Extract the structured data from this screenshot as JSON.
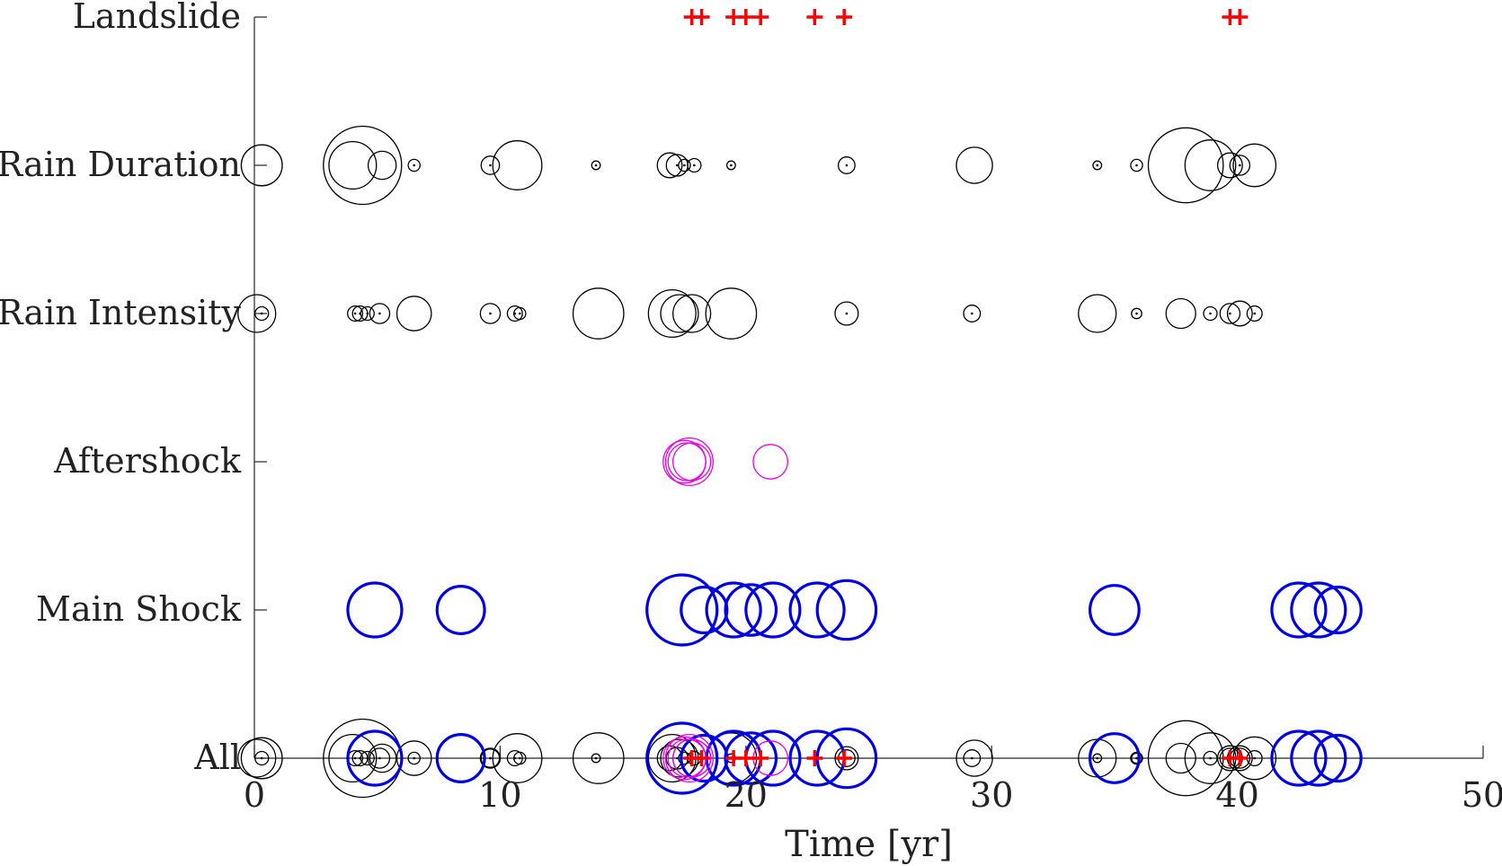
{
  "chart_data": {
    "type": "scatter",
    "title": "",
    "xlabel": "Time [yr]",
    "ylabel": "",
    "xlim": [
      0,
      50
    ],
    "xticks": [
      0,
      10,
      20,
      30,
      40,
      50
    ],
    "categories": [
      "All",
      "Main Shock",
      "Aftershock",
      "Rain Intensity",
      "Rain Duration",
      "Landslide"
    ],
    "grid": false,
    "legend": "none",
    "series": [
      {
        "row": "Main Shock",
        "marker": "circle-thick",
        "color": "#0000e6",
        "points": [
          {
            "x": 4.9,
            "size": 3
          },
          {
            "x": 8.4,
            "size": 2.6
          },
          {
            "x": 17.4,
            "size": 4
          },
          {
            "x": 18.3,
            "size": 2.5
          },
          {
            "x": 19.5,
            "size": 3
          },
          {
            "x": 20.2,
            "size": 2.8
          },
          {
            "x": 21.1,
            "size": 3
          },
          {
            "x": 22.9,
            "size": 3
          },
          {
            "x": 24.1,
            "size": 3.3
          },
          {
            "x": 35.0,
            "size": 2.7
          },
          {
            "x": 42.5,
            "size": 3
          },
          {
            "x": 43.3,
            "size": 3
          },
          {
            "x": 44.1,
            "size": 2.5
          }
        ]
      },
      {
        "row": "Aftershock",
        "marker": "circle",
        "color": "#e600e6",
        "points": [
          {
            "x": 17.5,
            "size": 2.3
          },
          {
            "x": 17.6,
            "size": 2.0
          },
          {
            "x": 17.7,
            "size": 2.6
          },
          {
            "x": 17.8,
            "size": 2.0
          },
          {
            "x": 21.0,
            "size": 1.8
          }
        ]
      },
      {
        "row": "Rain Intensity",
        "marker": "circle",
        "color": "#000000",
        "points": [
          {
            "x": 0.1,
            "size": 2
          },
          {
            "x": 0.3,
            "size": 0.5
          },
          {
            "x": 4.1,
            "size": 0.6
          },
          {
            "x": 4.3,
            "size": 0.6
          },
          {
            "x": 4.6,
            "size": 0.5
          },
          {
            "x": 5.1,
            "size": 0.9
          },
          {
            "x": 6.5,
            "size": 1.8
          },
          {
            "x": 9.6,
            "size": 0.9
          },
          {
            "x": 10.6,
            "size": 0.6
          },
          {
            "x": 10.8,
            "size": 0.4
          },
          {
            "x": 14.0,
            "size": 2.8
          },
          {
            "x": 17.0,
            "size": 2.6
          },
          {
            "x": 17.3,
            "size": 2.0
          },
          {
            "x": 17.8,
            "size": 2.0
          },
          {
            "x": 19.4,
            "size": 2.8
          },
          {
            "x": 24.1,
            "size": 1.1
          },
          {
            "x": 29.2,
            "size": 0.7
          },
          {
            "x": 34.3,
            "size": 2.0
          },
          {
            "x": 35.9,
            "size": 0.3
          },
          {
            "x": 37.7,
            "size": 1.5
          },
          {
            "x": 38.9,
            "size": 0.5
          },
          {
            "x": 39.7,
            "size": 0.9
          },
          {
            "x": 40.1,
            "size": 1.2
          },
          {
            "x": 40.7,
            "size": 0.6
          }
        ]
      },
      {
        "row": "Rain Duration",
        "marker": "circle",
        "color": "#000000",
        "points": [
          {
            "x": 0.3,
            "size": 2.2
          },
          {
            "x": 4.0,
            "size": 2.6
          },
          {
            "x": 4.4,
            "size": 4.5
          },
          {
            "x": 5.2,
            "size": 1.4
          },
          {
            "x": 6.5,
            "size": 0.4
          },
          {
            "x": 9.6,
            "size": 0.8
          },
          {
            "x": 10.7,
            "size": 2.7
          },
          {
            "x": 13.9,
            "size": 0.2
          },
          {
            "x": 16.9,
            "size": 1.2
          },
          {
            "x": 17.2,
            "size": 1.0
          },
          {
            "x": 17.5,
            "size": 0.4
          },
          {
            "x": 17.9,
            "size": 0.5
          },
          {
            "x": 19.4,
            "size": 0.2
          },
          {
            "x": 24.1,
            "size": 0.7
          },
          {
            "x": 29.3,
            "size": 1.9
          },
          {
            "x": 34.3,
            "size": 0.2
          },
          {
            "x": 35.9,
            "size": 0.4
          },
          {
            "x": 37.9,
            "size": 4.3
          },
          {
            "x": 38.9,
            "size": 2.8
          },
          {
            "x": 39.7,
            "size": 1.2
          },
          {
            "x": 40.1,
            "size": 0.9
          },
          {
            "x": 40.7,
            "size": 2.3
          }
        ]
      },
      {
        "row": "Landslide",
        "marker": "plus",
        "color": "#ff0000",
        "points": [
          {
            "x": 17.8
          },
          {
            "x": 18.2
          },
          {
            "x": 19.5
          },
          {
            "x": 20.0
          },
          {
            "x": 20.6
          },
          {
            "x": 22.8
          },
          {
            "x": 24.0
          },
          {
            "x": 39.7
          },
          {
            "x": 40.1
          }
        ]
      }
    ],
    "all_row": "All"
  }
}
